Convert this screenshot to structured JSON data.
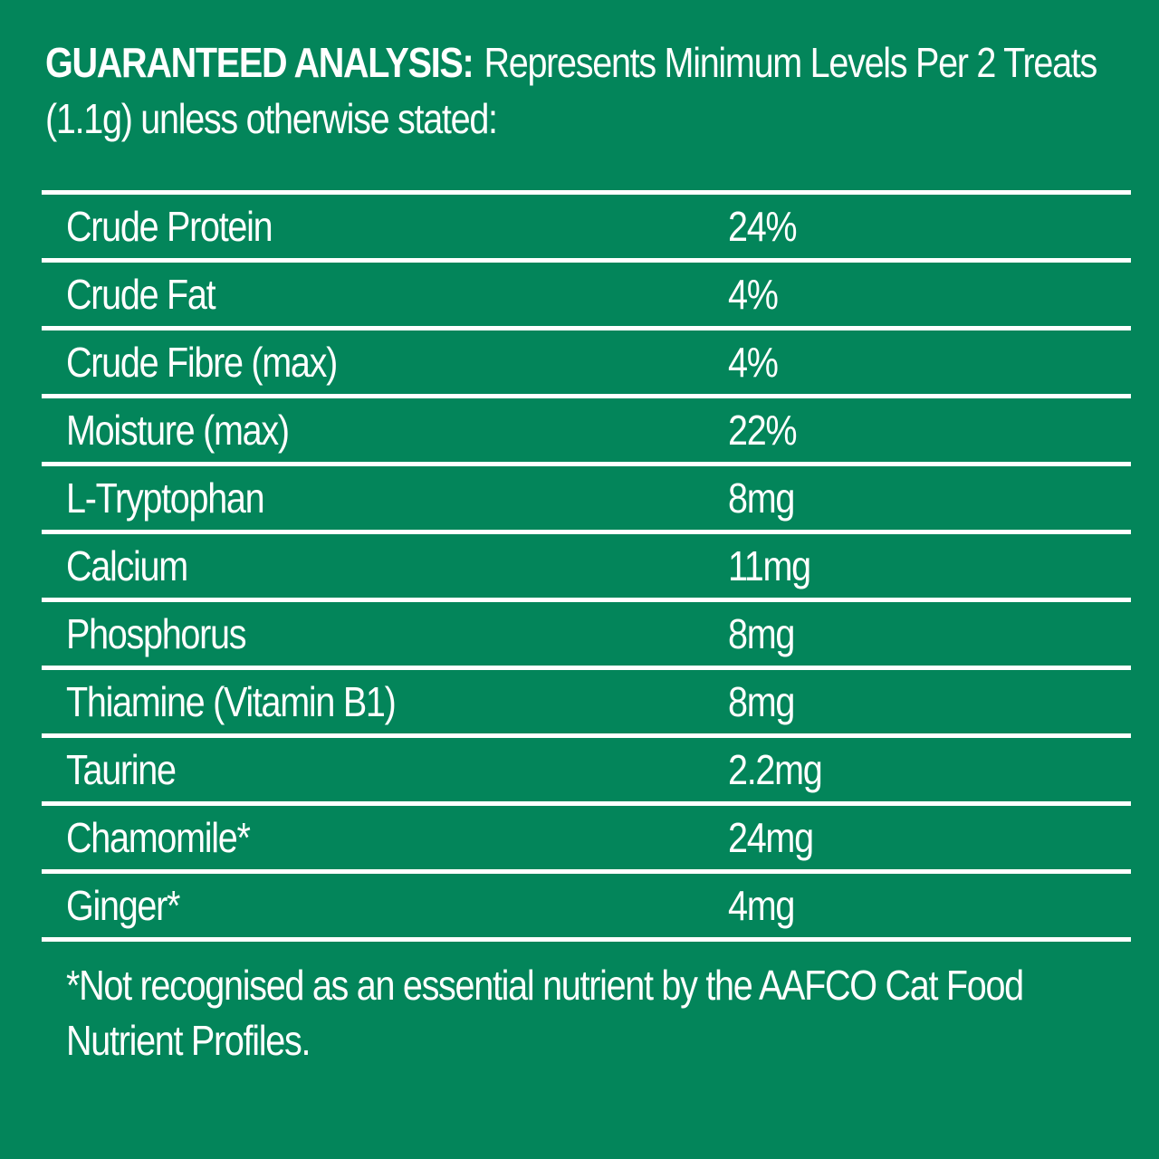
{
  "header": {
    "label": "GUARANTEED ANALYSIS:",
    "text": "Represents Minimum Levels Per 2 Treats (1.1g) unless otherwise stated:"
  },
  "table": {
    "rows": [
      {
        "name": "Crude Protein",
        "value": "24%"
      },
      {
        "name": "Crude Fat",
        "value": "4%"
      },
      {
        "name": "Crude Fibre (max)",
        "value": "4%"
      },
      {
        "name": "Moisture (max)",
        "value": "22%"
      },
      {
        "name": "L-Tryptophan",
        "value": "8mg"
      },
      {
        "name": "Calcium",
        "value": "11mg"
      },
      {
        "name": "Phosphorus",
        "value": "8mg"
      },
      {
        "name": "Thiamine (Vitamin B1)",
        "value": "8mg"
      },
      {
        "name": "Taurine",
        "value": "2.2mg"
      },
      {
        "name": "Chamomile*",
        "value": "24mg"
      },
      {
        "name": "Ginger*",
        "value": "4mg"
      }
    ]
  },
  "footnote": "*Not recognised as an essential nutrient by the AAFCO Cat Food Nutrient Profiles.",
  "colors": {
    "background": "#03855a",
    "text": "#ffffff"
  }
}
